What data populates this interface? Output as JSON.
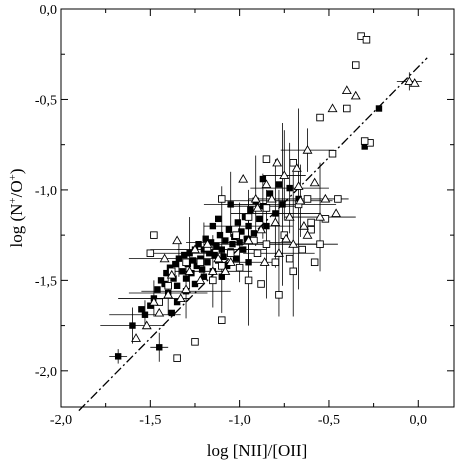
{
  "chart_data": {
    "type": "scatter",
    "title": "",
    "xlabel": "log [NII]/[OII]",
    "ylabel": {
      "main": "log (N",
      "sup1": "+",
      "mid": "/O",
      "sup2": "+",
      "end": ")"
    },
    "xlim": [
      -2.0,
      0.2
    ],
    "ylim": [
      -2.2,
      0.0
    ],
    "xticks": [
      {
        "value": -2.0,
        "label": "-2,0"
      },
      {
        "value": -1.5,
        "label": "-1,5"
      },
      {
        "value": -1.0,
        "label": "-1,0"
      },
      {
        "value": -0.5,
        "label": "-0,5"
      },
      {
        "value": 0.0,
        "label": "0,0"
      }
    ],
    "yticks": [
      {
        "value": 0.0,
        "label": "0,0"
      },
      {
        "value": -0.5,
        "label": "-0,5"
      },
      {
        "value": -1.0,
        "label": "-1,0"
      },
      {
        "value": -1.5,
        "label": "-1,5"
      },
      {
        "value": -2.0,
        "label": "-2,0"
      }
    ],
    "grid": false,
    "reference_line": {
      "style": "dash-dot",
      "points": [
        [
          -1.9,
          -2.22
        ],
        [
          0.05,
          -0.27
        ]
      ]
    },
    "series": [
      {
        "marker": "filled-square",
        "points": [
          [
            -1.68,
            -1.92
          ],
          [
            -1.6,
            -1.75
          ],
          [
            -1.53,
            -1.69
          ],
          [
            -1.5,
            -1.64
          ],
          [
            -1.48,
            -1.6
          ],
          [
            -1.46,
            -1.55
          ],
          [
            -1.44,
            -1.5
          ],
          [
            -1.42,
            -1.52
          ],
          [
            -1.41,
            -1.46
          ],
          [
            -1.4,
            -1.57
          ],
          [
            -1.39,
            -1.43
          ],
          [
            -1.37,
            -1.49
          ],
          [
            -1.36,
            -1.41
          ],
          [
            -1.35,
            -1.53
          ],
          [
            -1.34,
            -1.38
          ],
          [
            -1.32,
            -1.45
          ],
          [
            -1.31,
            -1.36
          ],
          [
            -1.3,
            -1.49
          ],
          [
            -1.29,
            -1.41
          ],
          [
            -1.28,
            -1.35
          ],
          [
            -1.27,
            -1.46
          ],
          [
            -1.26,
            -1.39
          ],
          [
            -1.25,
            -1.33
          ],
          [
            -1.24,
            -1.42
          ],
          [
            -1.23,
            -1.3
          ],
          [
            -1.22,
            -1.38
          ],
          [
            -1.21,
            -1.44
          ],
          [
            -1.2,
            -1.33
          ],
          [
            -1.19,
            -1.27
          ],
          [
            -1.18,
            -1.4
          ],
          [
            -1.17,
            -1.35
          ],
          [
            -1.16,
            -1.29
          ],
          [
            -1.15,
            -1.45
          ],
          [
            -1.14,
            -1.36
          ],
          [
            -1.13,
            -1.31
          ],
          [
            -1.12,
            -1.39
          ],
          [
            -1.11,
            -1.25
          ],
          [
            -1.1,
            -1.33
          ],
          [
            -1.09,
            -1.37
          ],
          [
            -1.08,
            -1.28
          ],
          [
            -1.07,
            -1.42
          ],
          [
            -1.06,
            -1.22
          ],
          [
            -1.05,
            -1.34
          ],
          [
            -1.04,
            -1.3
          ],
          [
            -1.03,
            -1.26
          ],
          [
            -1.02,
            -1.38
          ],
          [
            -1.01,
            -1.18
          ],
          [
            -1.0,
            -1.29
          ],
          [
            -0.99,
            -1.23
          ],
          [
            -0.98,
            -1.33
          ],
          [
            -0.97,
            -1.15
          ],
          [
            -0.96,
            -1.27
          ],
          [
            -0.95,
            -1.2
          ],
          [
            -0.94,
            -1.11
          ],
          [
            -0.92,
            -1.24
          ],
          [
            -0.91,
            -1.06
          ],
          [
            -0.89,
            -1.16
          ],
          [
            -0.87,
            -1.09
          ],
          [
            -0.85,
            -1.2
          ],
          [
            -0.83,
            -1.02
          ],
          [
            -0.8,
            -1.13
          ],
          [
            -0.78,
            -0.97
          ],
          [
            -0.76,
            -1.08
          ],
          [
            -0.72,
            -0.99
          ],
          [
            -1.45,
            -1.87
          ],
          [
            -1.3,
            -1.56
          ],
          [
            -1.1,
            -1.48
          ],
          [
            -1.05,
            -1.08
          ],
          [
            -0.87,
            -0.94
          ],
          [
            -0.67,
            -1.05
          ],
          [
            -1.35,
            -1.62
          ],
          [
            -1.55,
            -1.66
          ],
          [
            -1.38,
            -1.68
          ],
          [
            -1.25,
            -1.52
          ],
          [
            -1.15,
            -1.2
          ],
          [
            -0.3,
            -0.76
          ],
          [
            -0.22,
            -0.55
          ],
          [
            -1.2,
            -1.48
          ],
          [
            -0.95,
            -1.4
          ],
          [
            -1.12,
            -1.16
          ]
        ]
      },
      {
        "marker": "open-square",
        "points": [
          [
            -0.32,
            -0.15
          ],
          [
            -0.29,
            -0.17
          ],
          [
            -0.35,
            -0.31
          ],
          [
            -0.4,
            -0.55
          ],
          [
            -0.27,
            -0.74
          ],
          [
            -0.3,
            -0.73
          ],
          [
            -0.55,
            -0.6
          ],
          [
            -0.48,
            -0.8
          ],
          [
            -0.62,
            -1.05
          ],
          [
            -0.7,
            -0.85
          ],
          [
            -0.75,
            -1.25
          ],
          [
            -0.85,
            -1.3
          ],
          [
            -0.9,
            -1.35
          ],
          [
            -0.6,
            -1.22
          ],
          [
            -0.65,
            -1.33
          ],
          [
            -0.8,
            -1.4
          ],
          [
            -0.88,
            -1.52
          ],
          [
            -1.0,
            -1.43
          ],
          [
            -1.15,
            -1.5
          ],
          [
            -1.05,
            -1.35
          ],
          [
            -0.95,
            -1.5
          ],
          [
            -1.1,
            -1.42
          ],
          [
            -1.45,
            -1.62
          ],
          [
            -1.4,
            -1.53
          ],
          [
            -0.85,
            -0.83
          ],
          [
            -0.95,
            -1.15
          ],
          [
            -1.1,
            -1.05
          ],
          [
            -1.48,
            -1.25
          ],
          [
            -1.5,
            -1.35
          ],
          [
            -1.35,
            -1.93
          ],
          [
            -1.25,
            -1.84
          ],
          [
            -1.1,
            -1.72
          ],
          [
            -0.78,
            -1.58
          ],
          [
            -0.7,
            -1.45
          ],
          [
            -0.55,
            -1.3
          ],
          [
            -0.6,
            -1.18
          ],
          [
            -1.18,
            -1.32
          ],
          [
            -1.38,
            -1.45
          ],
          [
            -0.52,
            -1.16
          ],
          [
            -0.45,
            -1.05
          ],
          [
            -1.02,
            -1.25
          ],
          [
            -0.85,
            -1.1
          ],
          [
            -0.67,
            -1.08
          ],
          [
            -1.22,
            -1.4
          ],
          [
            -1.3,
            -1.4
          ],
          [
            -0.92,
            -1.28
          ],
          [
            -0.58,
            -1.4
          ],
          [
            -0.72,
            -1.38
          ]
        ]
      },
      {
        "marker": "open-triangle",
        "points": [
          [
            -0.05,
            -0.4
          ],
          [
            -0.02,
            -0.41
          ],
          [
            -0.4,
            -0.45
          ],
          [
            -0.35,
            -0.48
          ],
          [
            -0.48,
            -0.55
          ],
          [
            -0.62,
            -0.78
          ],
          [
            -0.75,
            -0.92
          ],
          [
            -0.85,
            -0.97
          ],
          [
            -0.68,
            -0.88
          ],
          [
            -0.58,
            -0.96
          ],
          [
            -0.52,
            -1.05
          ],
          [
            -0.46,
            -1.13
          ],
          [
            -0.66,
            -1.06
          ],
          [
            -0.72,
            -1.15
          ],
          [
            -0.8,
            -1.18
          ],
          [
            -0.88,
            -1.22
          ],
          [
            -0.95,
            -1.28
          ],
          [
            -0.78,
            -1.35
          ],
          [
            -0.62,
            -1.25
          ],
          [
            -0.7,
            -1.3
          ],
          [
            -0.9,
            -1.1
          ],
          [
            -0.82,
            -1.05
          ],
          [
            -1.05,
            -1.4
          ],
          [
            -1.15,
            -1.45
          ],
          [
            -1.22,
            -1.5
          ],
          [
            -1.3,
            -1.55
          ],
          [
            -1.4,
            -1.58
          ],
          [
            -1.48,
            -1.62
          ],
          [
            -1.38,
            -1.47
          ],
          [
            -1.28,
            -1.45
          ],
          [
            -1.58,
            -1.82
          ],
          [
            -1.52,
            -1.75
          ],
          [
            -1.45,
            -1.68
          ],
          [
            -1.33,
            -1.6
          ],
          [
            -1.12,
            -1.38
          ],
          [
            -1.25,
            -1.33
          ],
          [
            -1.35,
            -1.28
          ],
          [
            -1.42,
            -1.38
          ],
          [
            -0.98,
            -0.94
          ],
          [
            -0.55,
            -1.15
          ],
          [
            -0.64,
            -1.2
          ],
          [
            -0.74,
            -1.27
          ],
          [
            -0.86,
            -1.4
          ],
          [
            -0.91,
            -1.05
          ],
          [
            -1.08,
            -1.45
          ],
          [
            -1.18,
            -1.3
          ],
          [
            -0.67,
            -0.98
          ],
          [
            -0.79,
            -0.85
          ]
        ]
      }
    ],
    "error_bars_note": "",
    "error_bars": [
      {
        "x": -1.68,
        "y": -1.92,
        "dx": 0.05,
        "dy": 0.04
      },
      {
        "x": -1.6,
        "y": -1.75,
        "dx": 0.18,
        "dy": 0.1
      },
      {
        "x": -1.45,
        "y": -1.87,
        "dx": 0.05,
        "dy": 0.08
      },
      {
        "x": -1.53,
        "y": -1.69,
        "dx": 0.2,
        "dy": 0.08
      },
      {
        "x": -1.4,
        "y": -1.57,
        "dx": 0.22,
        "dy": 0.12
      },
      {
        "x": -1.34,
        "y": -1.38,
        "dx": 0.28,
        "dy": 0.1
      },
      {
        "x": -1.2,
        "y": -1.33,
        "dx": 0.3,
        "dy": 0.15
      },
      {
        "x": -1.1,
        "y": -1.33,
        "dx": 0.25,
        "dy": 0.35
      },
      {
        "x": -1.0,
        "y": -1.29,
        "dx": 0.3,
        "dy": 0.22
      },
      {
        "x": -0.95,
        "y": -1.2,
        "dx": 0.25,
        "dy": 0.2
      },
      {
        "x": -0.87,
        "y": -1.09,
        "dx": 0.2,
        "dy": 0.18
      },
      {
        "x": -0.8,
        "y": -1.13,
        "dx": 0.25,
        "dy": 0.3
      },
      {
        "x": -0.76,
        "y": -1.08,
        "dx": 0.3,
        "dy": 0.45
      },
      {
        "x": -0.72,
        "y": -0.99,
        "dx": 0.22,
        "dy": 0.25
      },
      {
        "x": -0.67,
        "y": -1.05,
        "dx": 0.28,
        "dy": 0.5
      },
      {
        "x": -0.62,
        "y": -0.78,
        "dx": 0.15,
        "dy": 0.12
      },
      {
        "x": -0.75,
        "y": -0.92,
        "dx": 0.12,
        "dy": 0.25
      },
      {
        "x": -0.7,
        "y": -1.3,
        "dx": 0.25,
        "dy": 0.4
      },
      {
        "x": -0.78,
        "y": -1.35,
        "dx": 0.2,
        "dy": 0.35
      },
      {
        "x": -0.55,
        "y": -1.15,
        "dx": 0.2,
        "dy": 0.3
      },
      {
        "x": -0.85,
        "y": -1.3,
        "dx": 0.28,
        "dy": 0.3
      },
      {
        "x": -0.05,
        "y": -0.4,
        "dx": 0.07,
        "dy": 0.05
      },
      {
        "x": -1.3,
        "y": -1.56,
        "dx": 0.25,
        "dy": 0.15
      },
      {
        "x": -1.15,
        "y": -1.45,
        "dx": 0.22,
        "dy": 0.2
      },
      {
        "x": -0.95,
        "y": -1.4,
        "dx": 0.15,
        "dy": 0.35
      },
      {
        "x": -1.48,
        "y": -1.6,
        "dx": 0.2,
        "dy": 0.1
      },
      {
        "x": -1.28,
        "y": -1.35,
        "dx": 0.2,
        "dy": 0.2
      },
      {
        "x": -1.05,
        "y": -1.08,
        "dx": 0.15,
        "dy": 0.18
      },
      {
        "x": -0.91,
        "y": -1.06,
        "dx": 0.18,
        "dy": 0.25
      },
      {
        "x": -0.66,
        "y": -1.06,
        "dx": 0.18,
        "dy": 0.2
      }
    ]
  }
}
